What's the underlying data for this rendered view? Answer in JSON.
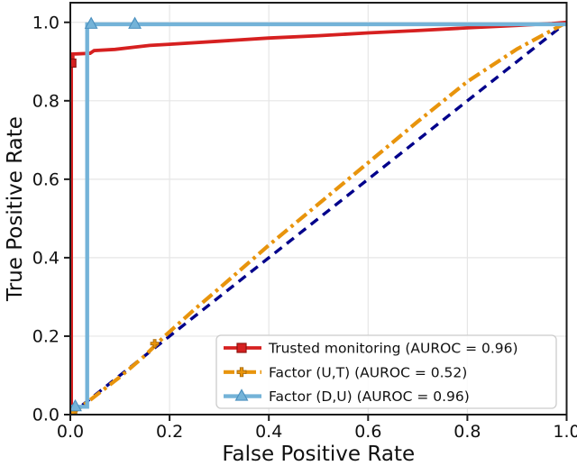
{
  "figure": {
    "background": "#ffffff",
    "spine_color": "#1c1c1c",
    "grid_color": "#e6e6e6",
    "text_color": "#111111"
  },
  "chart_data": {
    "type": "line",
    "title": "",
    "xlabel": "False Positive Rate",
    "ylabel": "True Positive Rate",
    "xlim": [
      0,
      1.0
    ],
    "ylim": [
      0,
      1.05
    ],
    "grid": true,
    "legend_position": "lower right",
    "x_ticks": [
      0,
      0.2,
      0.4,
      0.6,
      0.8,
      1.0
    ],
    "y_ticks": [
      0,
      0.2,
      0.4,
      0.6,
      0.8,
      1.0
    ],
    "x_tick_labels": [
      "0.0",
      "0.2",
      "0.4",
      "0.6",
      "0.8",
      "1.0"
    ],
    "y_tick_labels": [
      "0.0",
      "0.2",
      "0.4",
      "0.6",
      "0.8",
      "1.0"
    ],
    "series": [
      {
        "name": "chance-diagonal",
        "label": "",
        "in_legend": false,
        "color": "#00008b",
        "edge": "#00008b",
        "style": "dashed",
        "width": 3.4,
        "marker": "none",
        "points": [
          [
            0,
            0
          ],
          [
            1,
            1
          ]
        ],
        "marker_points": []
      },
      {
        "name": "factor-ut",
        "label": "Factor (U,T) (AUROC = 0.52)",
        "auroc": 0.52,
        "in_legend": true,
        "color": "#e8940c",
        "edge": "#a86a08",
        "style": "dashdot",
        "width": 4.2,
        "marker": "plus",
        "points": [
          [
            0,
            0
          ],
          [
            0.02,
            0.018
          ],
          [
            0.05,
            0.047
          ],
          [
            0.1,
            0.096
          ],
          [
            0.15,
            0.15
          ],
          [
            0.19,
            0.2
          ],
          [
            0.25,
            0.268
          ],
          [
            0.3,
            0.322
          ],
          [
            0.4,
            0.432
          ],
          [
            0.5,
            0.537
          ],
          [
            0.6,
            0.642
          ],
          [
            0.7,
            0.747
          ],
          [
            0.8,
            0.849
          ],
          [
            0.9,
            0.932
          ],
          [
            1,
            1
          ]
        ],
        "marker_points": [
          [
            0.005,
            0.006
          ],
          [
            0.17,
            0.181
          ]
        ]
      },
      {
        "name": "trusted-monitoring",
        "label": "Trusted monitoring (AUROC = 0.96)",
        "auroc": 0.96,
        "in_legend": true,
        "color": "#d62020",
        "edge": "#8f1410",
        "style": "solid",
        "width": 3.8,
        "marker": "square",
        "points": [
          [
            0,
            0
          ],
          [
            0.002,
            0
          ],
          [
            0.002,
            0.896
          ],
          [
            0.005,
            0.896
          ],
          [
            0.005,
            0.919
          ],
          [
            0.04,
            0.921
          ],
          [
            0.048,
            0.928
          ],
          [
            0.09,
            0.931
          ],
          [
            0.13,
            0.937
          ],
          [
            0.16,
            0.941
          ],
          [
            0.2,
            0.944
          ],
          [
            0.3,
            0.952
          ],
          [
            0.4,
            0.96
          ],
          [
            0.5,
            0.966
          ],
          [
            0.6,
            0.973
          ],
          [
            0.7,
            0.979
          ],
          [
            0.8,
            0.986
          ],
          [
            0.9,
            0.992
          ],
          [
            0.97,
            0.997
          ],
          [
            1,
            1
          ]
        ],
        "marker_points": [
          [
            0.003,
            0.896
          ]
        ]
      },
      {
        "name": "factor-du",
        "label": "Factor (D,U) (AUROC = 0.96)",
        "auroc": 0.96,
        "in_legend": true,
        "color": "#74b3d8",
        "edge": "#4a90bf",
        "style": "solid",
        "width": 4.4,
        "marker": "triangle",
        "points": [
          [
            0,
            0
          ],
          [
            0,
            0.02
          ],
          [
            0.034,
            0.02
          ],
          [
            0.034,
            0.995
          ],
          [
            1,
            0.995
          ],
          [
            1,
            1
          ]
        ],
        "marker_points": [
          [
            0.01,
            0.02
          ],
          [
            0.042,
            0.995
          ],
          [
            0.13,
            0.995
          ]
        ]
      }
    ],
    "legend_order": [
      "trusted-monitoring",
      "factor-ut",
      "factor-du"
    ]
  }
}
